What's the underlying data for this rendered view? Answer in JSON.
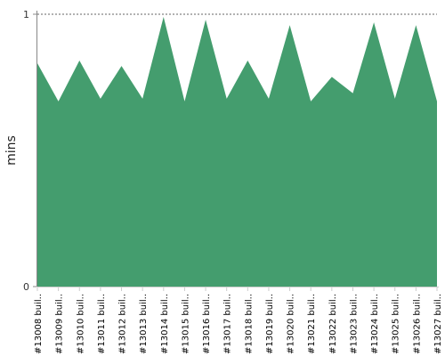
{
  "chart_data": {
    "type": "area",
    "ylabel": "mins",
    "ylim": [
      0,
      1
    ],
    "yticks": [
      "0",
      "1"
    ],
    "grid": "dotted line at top value",
    "categories": [
      "#13008 buil..",
      "#13009 buil..",
      "#13010 buil..",
      "#13011 buil..",
      "#13012 buil..",
      "#13013 buil..",
      "#13014 buil..",
      "#13015 buil..",
      "#13016 buil..",
      "#13017 buil..",
      "#13018 buil..",
      "#13019 buil..",
      "#13020 buil..",
      "#13021 buil..",
      "#13022 buil..",
      "#13023 buil..",
      "#13024 buil..",
      "#13025 buil..",
      "#13026 buil..",
      "#13027 buil.."
    ],
    "series": [
      {
        "color": "#449d6e",
        "values": [
          0.82,
          0.68,
          0.83,
          0.69,
          0.81,
          0.69,
          0.99,
          0.68,
          0.98,
          0.69,
          0.83,
          0.69,
          0.96,
          0.68,
          0.77,
          0.71,
          0.97,
          0.69,
          0.96,
          0.68
        ]
      }
    ]
  }
}
